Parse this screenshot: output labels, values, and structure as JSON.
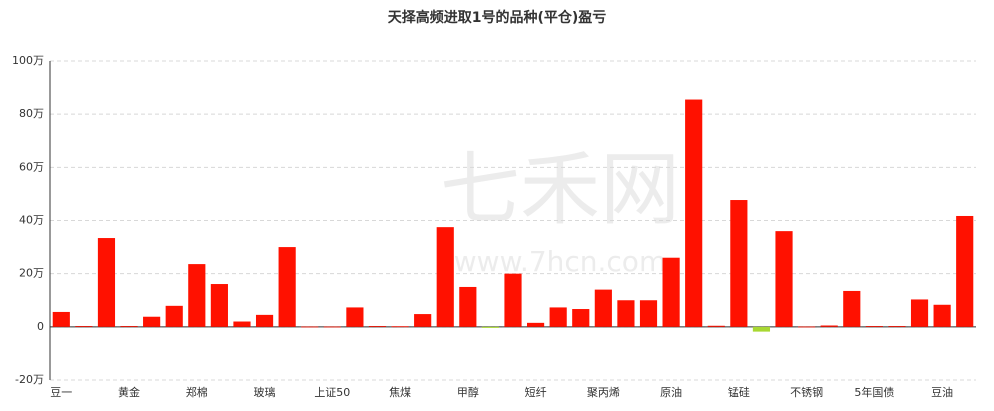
{
  "chart_data": {
    "type": "bar",
    "title": "天择高频进取1号的品种(平仓)盈亏",
    "watermark": [
      "七禾网",
      "www.7hcn.com"
    ],
    "categories": [
      "豆一",
      null,
      null,
      "黄金",
      null,
      null,
      "郑棉",
      null,
      null,
      "玻璃",
      null,
      null,
      "上证50",
      null,
      null,
      "焦煤",
      null,
      null,
      "甲醇",
      null,
      null,
      "短纤",
      null,
      null,
      "聚丙烯",
      null,
      null,
      "原油",
      null,
      null,
      "锰硅",
      null,
      null,
      "不锈钢",
      null,
      null,
      "5年国债",
      null,
      null,
      "豆油",
      null
    ],
    "values": [
      5.6,
      0.3,
      33.4,
      0.3,
      3.8,
      7.9,
      23.6,
      16.1,
      2,
      4.5,
      30,
      0.1,
      0.1,
      7.3,
      0.3,
      0.2,
      4.8,
      37.5,
      15,
      -0.4,
      20,
      1.5,
      7.3,
      6.7,
      14,
      10,
      10,
      26,
      85.5,
      0.4,
      47.7,
      -1.8,
      36,
      0.1,
      0.5,
      13.5,
      0.3,
      0.3,
      10.3,
      8.3,
      41.7
    ],
    "positive_color": "#ff1100",
    "negative_color": "#a8d832",
    "ylim": [
      -20,
      100
    ],
    "yticks": [
      {
        "value": -20,
        "label": "-20万"
      },
      {
        "value": 0,
        "label": "0"
      },
      {
        "value": 20,
        "label": "20万"
      },
      {
        "value": 40,
        "label": "40万"
      },
      {
        "value": 60,
        "label": "60万"
      },
      {
        "value": 80,
        "label": "80万"
      },
      {
        "value": 100,
        "label": "100万"
      }
    ],
    "grid": true
  }
}
